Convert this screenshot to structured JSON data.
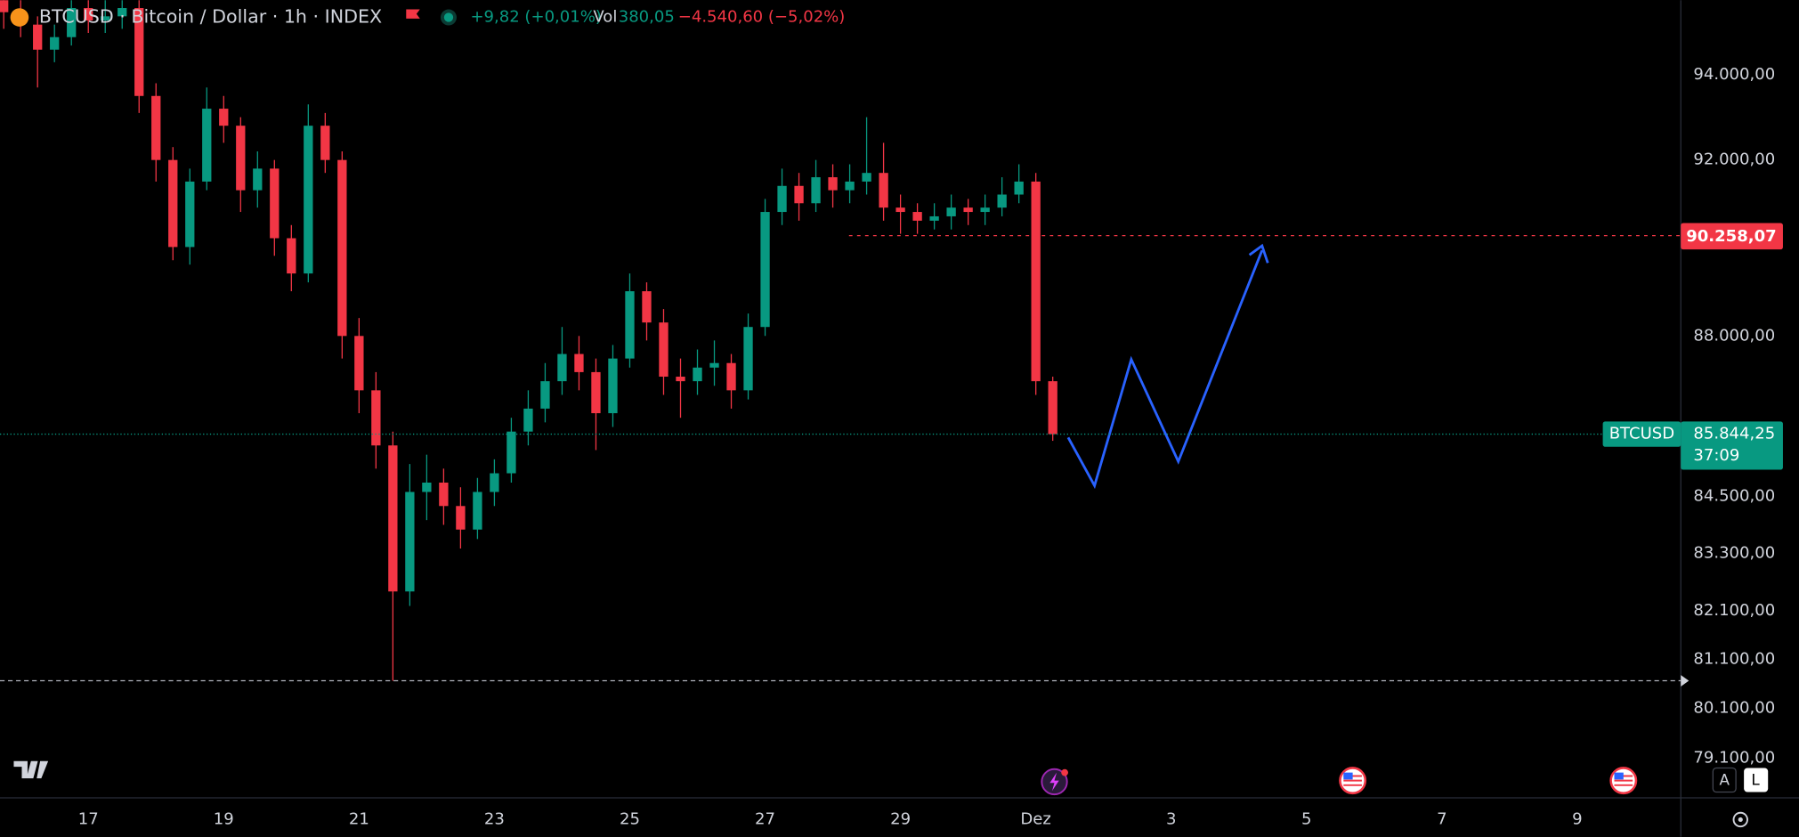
{
  "header": {
    "symbol": "BTCUSD · Bitcoin / Dollar · 1h · INDEX",
    "change": "+9,82 (+0,01%)",
    "volume_label": "Vol",
    "volume": "380,05",
    "period_change": "−4.540,60 (−5,02%)"
  },
  "chart_data": {
    "type": "candlestick",
    "log_scale": true,
    "grid": false,
    "up_color": "#089981",
    "down_color": "#f23645",
    "x": [
      15.75,
      16,
      16.25,
      16.5,
      16.75,
      17,
      17.25,
      17.5,
      17.75,
      18,
      18.25,
      18.5,
      18.75,
      19,
      19.25,
      19.5,
      19.75,
      20,
      20.25,
      20.5,
      20.75,
      21,
      21.25,
      21.5,
      21.75,
      22,
      22.25,
      22.5,
      22.75,
      23,
      23.25,
      23.5,
      23.75,
      24,
      24.25,
      24.5,
      24.75,
      25,
      25.25,
      25.5,
      25.75,
      26,
      26.25,
      26.5,
      26.75,
      27,
      27.25,
      27.5,
      27.75,
      28,
      28.25,
      28.5,
      28.75,
      29,
      29.25,
      29.5,
      29.75,
      30,
      30.25,
      30.5,
      30.75,
      31,
      31.25
    ],
    "open": [
      95800,
      95500,
      95200,
      94600,
      94900,
      95600,
      95300,
      95400,
      95600,
      93500,
      92000,
      90000,
      91500,
      93200,
      92800,
      91300,
      91800,
      90200,
      89400,
      92800,
      92000,
      88000,
      86800,
      85600,
      82500,
      84600,
      84800,
      84300,
      83800,
      84600,
      85000,
      85900,
      86400,
      87000,
      87600,
      87200,
      86300,
      87500,
      89000,
      88300,
      87100,
      87000,
      87300,
      87400,
      86800,
      88200,
      90800,
      91400,
      91000,
      91600,
      91300,
      91500,
      91700,
      90900,
      90800,
      90600,
      90700,
      90900,
      90800,
      90900,
      91200,
      91500,
      87000
    ],
    "high": [
      96000,
      95900,
      95400,
      95200,
      96000,
      96000,
      95900,
      96000,
      95800,
      93800,
      92300,
      91800,
      93700,
      93500,
      93000,
      92200,
      92000,
      90500,
      93300,
      93100,
      92200,
      88400,
      87200,
      85900,
      85200,
      85400,
      85100,
      84700,
      84900,
      85300,
      86200,
      86800,
      87400,
      88200,
      88000,
      87500,
      87800,
      89400,
      89200,
      88600,
      87500,
      87700,
      87900,
      87600,
      88500,
      91100,
      91800,
      91700,
      92000,
      91900,
      91900,
      93000,
      92400,
      91200,
      91000,
      91000,
      91200,
      91100,
      91200,
      91600,
      91900,
      91700,
      87100
    ],
    "low": [
      95100,
      94900,
      93700,
      94300,
      94700,
      95000,
      95000,
      95100,
      93100,
      91500,
      89700,
      89600,
      91300,
      92400,
      90800,
      90900,
      89800,
      89000,
      89200,
      91700,
      87500,
      86300,
      85100,
      80660,
      82200,
      84000,
      83900,
      83400,
      83600,
      84300,
      84800,
      85600,
      86100,
      86700,
      86800,
      85500,
      86000,
      87300,
      87900,
      86700,
      86200,
      86700,
      86900,
      86400,
      86600,
      88000,
      90500,
      90600,
      90800,
      90900,
      91000,
      91200,
      90600,
      90300,
      90300,
      90400,
      90400,
      90500,
      90500,
      90700,
      91000,
      86700,
      85700
    ],
    "close": [
      95500,
      95200,
      94600,
      94900,
      95600,
      95300,
      95400,
      95600,
      93500,
      92000,
      90000,
      91500,
      93200,
      92800,
      91300,
      91800,
      90200,
      89400,
      92800,
      92000,
      88000,
      86800,
      85600,
      82500,
      84600,
      84800,
      84300,
      83800,
      84600,
      85000,
      85900,
      86400,
      87000,
      87600,
      87200,
      86300,
      87500,
      89000,
      88300,
      87100,
      87000,
      87300,
      87400,
      86800,
      88200,
      90800,
      91400,
      91000,
      91600,
      91300,
      91500,
      91700,
      90900,
      90800,
      90600,
      90700,
      90900,
      90800,
      90900,
      91200,
      91500,
      87000,
      85844.25
    ],
    "xlim": [
      15.695,
      40.53
    ],
    "xticks": [
      17,
      19,
      21,
      23,
      25,
      27,
      29,
      {
        "value": 31,
        "label": "Dez"
      },
      {
        "value": 33,
        "label": "3"
      },
      {
        "value": 35,
        "label": "5"
      },
      {
        "value": 37,
        "label": "7"
      },
      {
        "value": 39,
        "label": "9"
      }
    ],
    "ylim": [
      78310,
      95790
    ],
    "yticks": [
      {
        "value": 94000,
        "label": "94.000,00"
      },
      {
        "value": 92000,
        "label": "92.000,00"
      },
      {
        "value": 88000,
        "label": "88.000,00"
      },
      {
        "value": 84500,
        "label": "84.500,00"
      },
      {
        "value": 83300,
        "label": "83.300,00"
      },
      {
        "value": 82100,
        "label": "82.100,00"
      },
      {
        "value": 81100,
        "label": "81.100,00"
      },
      {
        "value": 80100,
        "label": "80.100,00"
      },
      {
        "value": 79100,
        "label": "79.100,00"
      }
    ],
    "level_price": {
      "value": 90258.07,
      "label": "90.258,07"
    },
    "last_price": {
      "value": 85844.25,
      "label": "85.844,25"
    },
    "last_symbol": "BTCUSD",
    "countdown": "37:09"
  },
  "toolbar": {
    "auto": "A",
    "log": "L"
  }
}
